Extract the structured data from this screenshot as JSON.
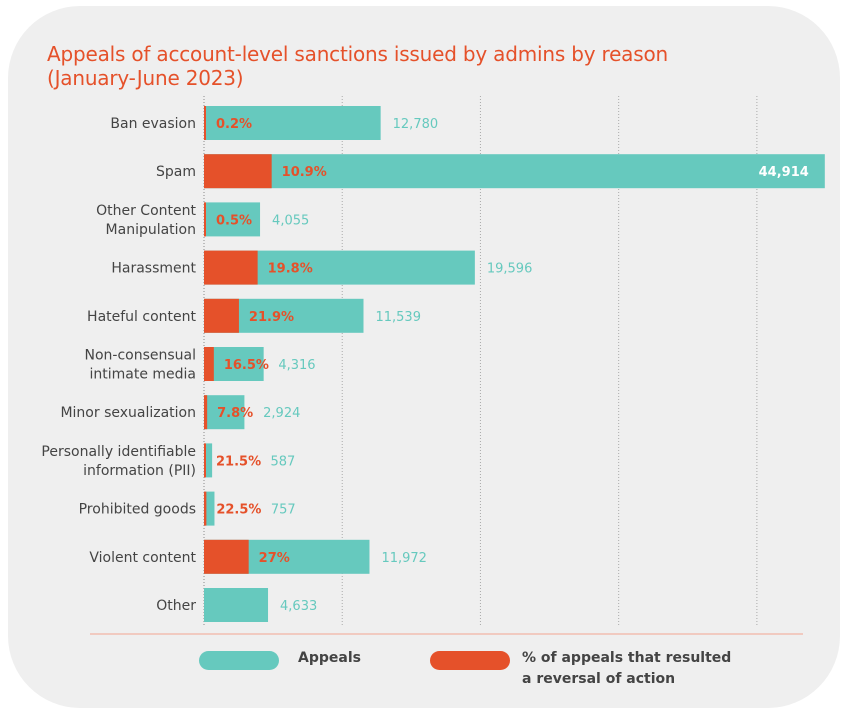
{
  "chart_data": {
    "type": "bar",
    "title": "Appeals of account-level sanctions issued by admins by reason",
    "subtitle": "(January-June 2023)",
    "categories": [
      "Ban evasion",
      "Spam",
      "Other Content Manipulation",
      "Harassment",
      "Hateful content",
      "Non-consensual intimate media",
      "Minor sexualization",
      "Personally identifiable information (PII)",
      "Prohibited goods",
      "Violent content",
      "Other"
    ],
    "category_lines": [
      [
        "Ban evasion"
      ],
      [
        "Spam"
      ],
      [
        "Other Content",
        "Manipulation"
      ],
      [
        "Harassment"
      ],
      [
        "Hateful content"
      ],
      [
        "Non-consensual",
        "intimate media"
      ],
      [
        "Minor sexualization"
      ],
      [
        "Personally identifiable",
        "information (PII)"
      ],
      [
        "Prohibited goods"
      ],
      [
        "Violent content"
      ],
      [
        "Other"
      ]
    ],
    "series": [
      {
        "name": "Appeals",
        "values": [
          12780,
          44914,
          4055,
          19596,
          11539,
          4316,
          2924,
          587,
          757,
          11972,
          4633
        ],
        "labels": [
          "12,780",
          "44,914",
          "4,055",
          "19,596",
          "11,539",
          "4,316",
          "2,924",
          "587",
          "757",
          "11,972",
          "4,633"
        ]
      },
      {
        "name": "% of appeals that resulted a reversal of action",
        "values": [
          0.2,
          10.9,
          0.5,
          19.8,
          21.9,
          16.5,
          7.8,
          21.5,
          22.5,
          27,
          null
        ],
        "labels": [
          "0.2%",
          "10.9%",
          "0.5%",
          "19.8%",
          "21.9%",
          "16.5%",
          "7.8%",
          "21.5%",
          "22.5%",
          "27%",
          ""
        ]
      }
    ],
    "xlim": [
      0,
      45000
    ],
    "grid": true,
    "legend_position": "bottom",
    "colors": {
      "appeals": "#66c9be",
      "reversal": "#e5512a",
      "title": "#e5512a",
      "gridline": "#aaaaaa"
    }
  },
  "legend": {
    "appeals_label": "Appeals",
    "reversal_label_line1": "% of appeals that resulted",
    "reversal_label_line2": "a reversal of action"
  }
}
